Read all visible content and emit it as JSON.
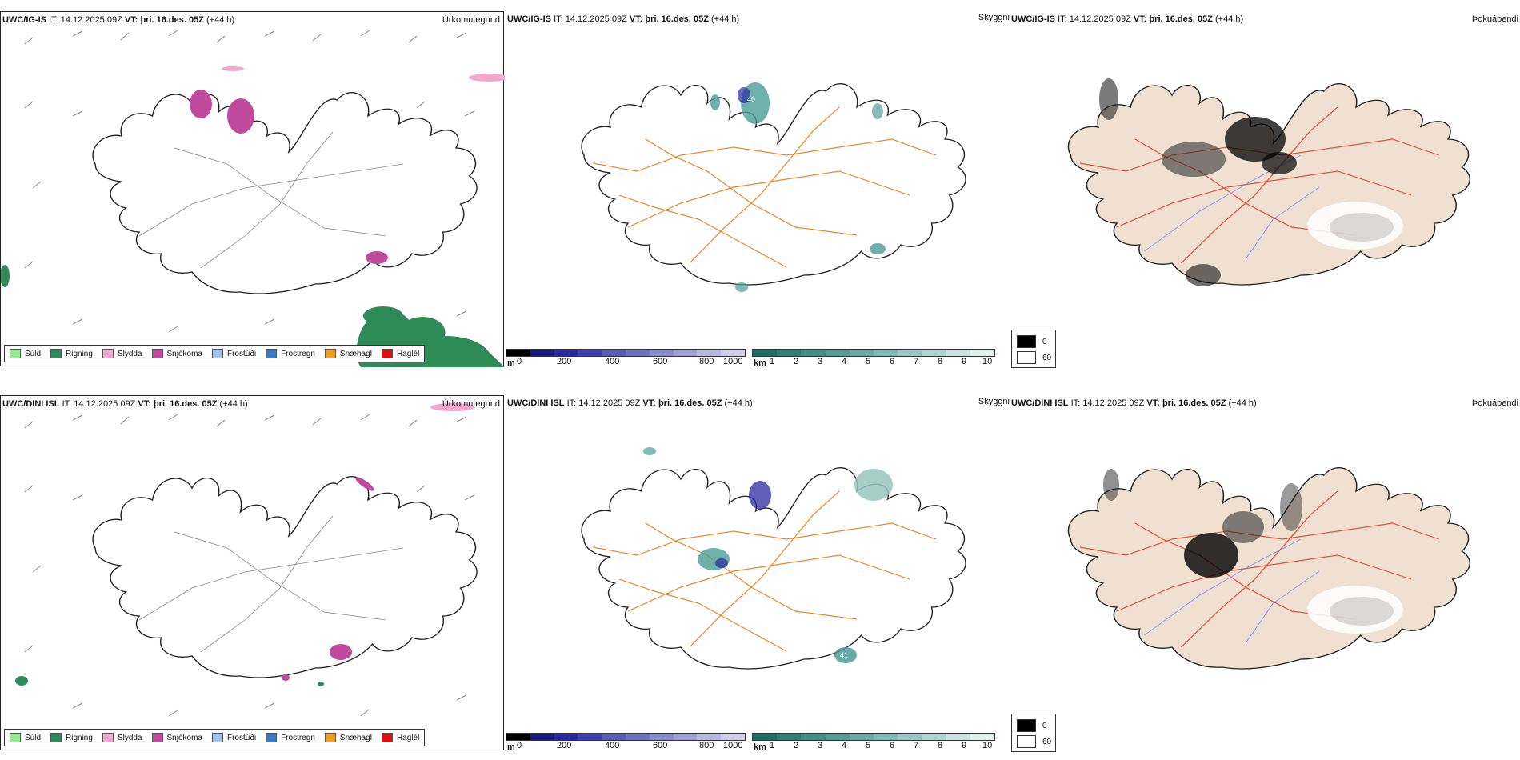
{
  "panels": {
    "ig": {
      "model": "UWC/IG-IS",
      "it_label": "IT:",
      "it_value": "14.12.2025 09Z",
      "vt_label": "VT:",
      "vt_value": "þri. 16.des. 05Z",
      "lead": "(+44 h)"
    },
    "dini": {
      "model": "UWC/DINI ISL",
      "it_label": "IT:",
      "it_value": "14.12.2025 09Z",
      "vt_label": "VT:",
      "vt_value": "þri. 16.des. 05Z",
      "lead": "(+44 h)"
    }
  },
  "parameters": {
    "precip_type": "Úrkomutegund",
    "visibility": "Skyggni",
    "cloud_index": "Þokuábendi"
  },
  "precip_legend": [
    {
      "label": "Súld",
      "color": "#90ee90"
    },
    {
      "label": "Rigning",
      "color": "#2e8b57"
    },
    {
      "label": "Slydda",
      "color": "#f4a6d0"
    },
    {
      "label": "Snjókoma",
      "color": "#c04a9e"
    },
    {
      "label": "Frostúði",
      "color": "#9ec5f0"
    },
    {
      "label": "Frostregn",
      "color": "#3c78c8"
    },
    {
      "label": "Snæhagl",
      "color": "#f0a020"
    },
    {
      "label": "Haglél",
      "color": "#e01010"
    }
  ],
  "height_scale": {
    "unit": "m",
    "ticks": [
      "0",
      "200",
      "400",
      "600",
      "800",
      "1000"
    ],
    "colors": [
      "#000000",
      "#1a1a80",
      "#2a2aa0",
      "#4040b0",
      "#5a5ab8",
      "#7070c0",
      "#8888cc",
      "#a0a0d8",
      "#b8b8e0",
      "#d0d0ec"
    ]
  },
  "visibility_scale": {
    "unit": "km",
    "ticks": [
      "1",
      "2",
      "3",
      "4",
      "5",
      "6",
      "7",
      "8",
      "9",
      "10"
    ],
    "colors": [
      "#1f6e68",
      "#2f7e78",
      "#3f8e88",
      "#569c96",
      "#6aaaa4",
      "#80b8b2",
      "#98c6c0",
      "#b0d4cf",
      "#c8e2de",
      "#e4f0ee"
    ]
  },
  "cloud_legend": {
    "high": "0",
    "low": "60"
  },
  "annotations": {
    "ig_vis_label": "40",
    "dini_vis_label": "41"
  }
}
